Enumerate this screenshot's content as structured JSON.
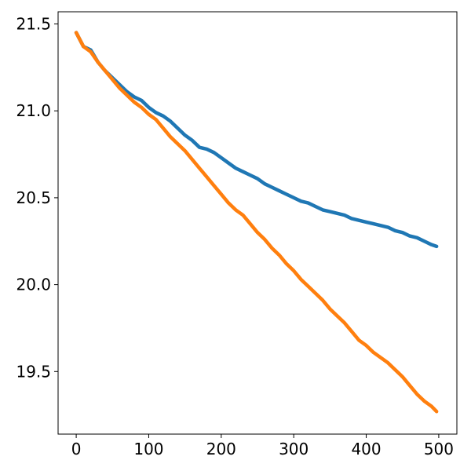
{
  "chart_data": {
    "type": "line",
    "title": "",
    "xlabel": "",
    "ylabel": "",
    "xlim": [
      -25,
      525
    ],
    "ylim": [
      19.14,
      21.57
    ],
    "xticks": [
      0,
      100,
      200,
      300,
      400,
      500
    ],
    "yticks": [
      19.5,
      20.0,
      20.5,
      21.0,
      21.5
    ],
    "xtick_labels": [
      "0",
      "100",
      "200",
      "300",
      "400",
      "500"
    ],
    "ytick_labels": [
      "19.5",
      "20.0",
      "20.5",
      "21.0",
      "21.5"
    ],
    "grid": false,
    "legend": "none",
    "series": [
      {
        "color": "#1f77b4",
        "x": [
          0,
          10,
          20,
          30,
          40,
          50,
          60,
          70,
          80,
          90,
          100,
          110,
          120,
          130,
          140,
          150,
          160,
          170,
          180,
          190,
          200,
          210,
          220,
          230,
          240,
          250,
          260,
          270,
          280,
          290,
          300,
          310,
          320,
          330,
          340,
          350,
          360,
          370,
          380,
          390,
          400,
          410,
          420,
          430,
          440,
          450,
          460,
          470,
          480,
          490,
          497
        ],
        "y": [
          21.45,
          21.37,
          21.35,
          21.28,
          21.23,
          21.19,
          21.15,
          21.11,
          21.08,
          21.06,
          21.02,
          20.99,
          20.97,
          20.94,
          20.9,
          20.86,
          20.83,
          20.79,
          20.78,
          20.76,
          20.73,
          20.7,
          20.67,
          20.65,
          20.63,
          20.61,
          20.58,
          20.56,
          20.54,
          20.52,
          20.5,
          20.48,
          20.47,
          20.45,
          20.43,
          20.42,
          20.41,
          20.4,
          20.38,
          20.37,
          20.36,
          20.35,
          20.34,
          20.33,
          20.31,
          20.3,
          20.28,
          20.27,
          20.25,
          20.23,
          20.22
        ]
      },
      {
        "color": "#ff7f0e",
        "x": [
          0,
          10,
          20,
          30,
          40,
          50,
          60,
          70,
          80,
          90,
          100,
          110,
          120,
          130,
          140,
          150,
          160,
          170,
          180,
          190,
          200,
          210,
          220,
          230,
          240,
          250,
          260,
          270,
          280,
          290,
          300,
          310,
          320,
          330,
          340,
          350,
          360,
          370,
          380,
          390,
          400,
          410,
          420,
          430,
          440,
          450,
          460,
          470,
          480,
          490,
          497
        ],
        "y": [
          21.45,
          21.37,
          21.34,
          21.28,
          21.23,
          21.18,
          21.13,
          21.09,
          21.05,
          21.02,
          20.98,
          20.95,
          20.9,
          20.85,
          20.81,
          20.77,
          20.72,
          20.67,
          20.62,
          20.57,
          20.52,
          20.47,
          20.43,
          20.4,
          20.35,
          20.3,
          20.26,
          20.21,
          20.17,
          20.12,
          20.08,
          20.03,
          19.99,
          19.95,
          19.91,
          19.86,
          19.82,
          19.78,
          19.73,
          19.68,
          19.65,
          19.61,
          19.58,
          19.55,
          19.51,
          19.47,
          19.42,
          19.37,
          19.33,
          19.3,
          19.27
        ]
      }
    ]
  }
}
